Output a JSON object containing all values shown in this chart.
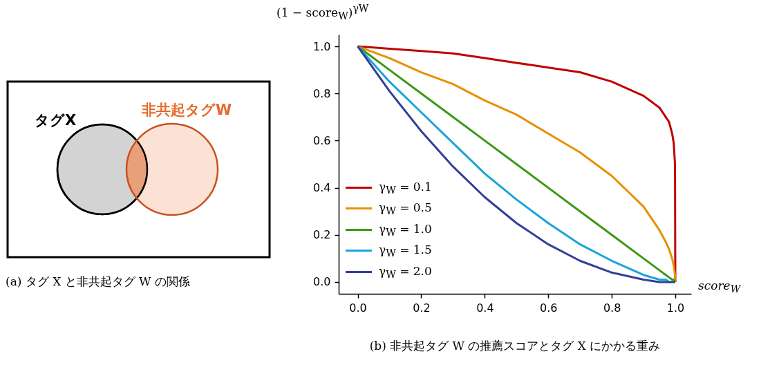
{
  "chart_data": [
    {
      "type": "other",
      "title": "(a) タグ X と非共起タグ W の関係",
      "annotations": [
        "タグX",
        "非共起タグW"
      ]
    },
    {
      "type": "line",
      "title": "(b) 非共起タグ W の推薦スコアとタグ X にかかる重み",
      "xlabel": "score$_{W}$",
      "ylabel": "(1 − score$_{W}$)$^{γW}$",
      "x": [
        0,
        0.1,
        0.2,
        0.3,
        0.4,
        0.5,
        0.6,
        0.7,
        0.8,
        0.9,
        0.95,
        0.97,
        0.98,
        0.99,
        0.995,
        0.999,
        1
      ],
      "series": [
        {
          "name": "γ$_{W}$ = 0.1",
          "color": "#c00000",
          "values": [
            1,
            0.99,
            0.98,
            0.97,
            0.95,
            0.93,
            0.91,
            0.89,
            0.85,
            0.79,
            0.74,
            0.7,
            0.68,
            0.63,
            0.59,
            0.5,
            0
          ]
        },
        {
          "name": "γ$_{W}$ = 0.5",
          "color": "#e69100",
          "values": [
            1,
            0.95,
            0.89,
            0.84,
            0.77,
            0.71,
            0.63,
            0.55,
            0.45,
            0.32,
            0.22,
            0.17,
            0.14,
            0.1,
            0.07,
            0.03,
            0
          ]
        },
        {
          "name": "γ$_{W}$ = 1.0",
          "color": "#3a9a16",
          "values": [
            1,
            0.9,
            0.8,
            0.7,
            0.6,
            0.5,
            0.4,
            0.3,
            0.2,
            0.1,
            0.05,
            0.03,
            0.02,
            0.01,
            0.01,
            0,
            0
          ]
        },
        {
          "name": "γ$_{W}$ = 1.5",
          "color": "#1aa5d8",
          "values": [
            1,
            0.85,
            0.72,
            0.59,
            0.46,
            0.35,
            0.25,
            0.16,
            0.09,
            0.03,
            0.01,
            0.01,
            0,
            0,
            null,
            null,
            null
          ]
        },
        {
          "name": "γ$_{W}$ = 2.0",
          "color": "#333f99",
          "values": [
            1,
            0.81,
            0.64,
            0.49,
            0.36,
            0.25,
            0.16,
            0.09,
            0.04,
            0.01,
            0,
            0,
            0,
            0,
            0,
            0,
            0
          ]
        }
      ],
      "xlim": [
        -0.06,
        1.05
      ],
      "ylim": [
        -0.05,
        1.05
      ],
      "xticks": [
        {
          "value": 0,
          "label": "0.0"
        },
        0.2,
        0.4,
        0.6,
        0.8,
        {
          "value": 1,
          "label": "1.0"
        }
      ],
      "yticks": [
        {
          "value": 0,
          "label": "0.0"
        },
        0.2,
        0.4,
        0.6,
        0.8,
        {
          "value": 1,
          "label": "1.0"
        }
      ],
      "legend": "bottom left"
    }
  ]
}
